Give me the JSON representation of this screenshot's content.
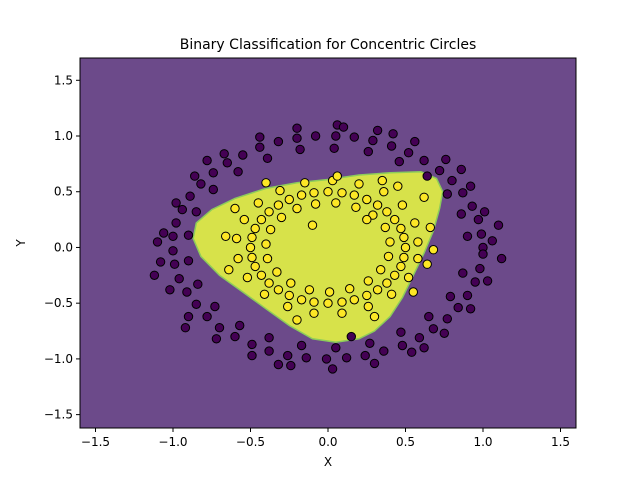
{
  "chart_data": {
    "type": "scatter",
    "title": "Binary Classification for Concentric Circles",
    "xlabel": "X",
    "ylabel": "Y",
    "xlim": [
      -1.6,
      1.6
    ],
    "ylim": [
      -1.62,
      1.7
    ],
    "x_ticks": [
      -1.5,
      -1.0,
      -0.5,
      0.0,
      0.5,
      1.0,
      1.5
    ],
    "x_tick_labels": [
      "−1.5",
      "−1.0",
      "−0.5",
      "0.0",
      "0.5",
      "1.0",
      "1.5"
    ],
    "y_ticks": [
      -1.5,
      -1.0,
      -0.5,
      0.0,
      0.5,
      1.0,
      1.5
    ],
    "y_tick_labels": [
      "−1.5",
      "−1.0",
      "−0.5",
      "0.0",
      "0.5",
      "1.0",
      "1.5"
    ],
    "grid": false,
    "legend": "none",
    "colors": {
      "background_region": "#6c4a8a",
      "decision_region": "#d7e24a",
      "decision_edge": "#8ccc5a",
      "class_0": "#440154",
      "class_1": "#fde725",
      "marker_edge": "#000000"
    },
    "decision_region": [
      [
        -0.85,
        0.22
      ],
      [
        -0.75,
        0.34
      ],
      [
        -0.6,
        0.44
      ],
      [
        -0.4,
        0.53
      ],
      [
        -0.2,
        0.58
      ],
      [
        0.0,
        0.61
      ],
      [
        0.2,
        0.65
      ],
      [
        0.4,
        0.67
      ],
      [
        0.6,
        0.68
      ],
      [
        0.7,
        0.62
      ],
      [
        0.74,
        0.5
      ],
      [
        0.72,
        0.35
      ],
      [
        0.68,
        0.15
      ],
      [
        0.62,
        -0.05
      ],
      [
        0.55,
        -0.25
      ],
      [
        0.48,
        -0.45
      ],
      [
        0.4,
        -0.62
      ],
      [
        0.3,
        -0.75
      ],
      [
        0.2,
        -0.82
      ],
      [
        0.05,
        -0.85
      ],
      [
        -0.1,
        -0.82
      ],
      [
        -0.25,
        -0.7
      ],
      [
        -0.4,
        -0.55
      ],
      [
        -0.55,
        -0.4
      ],
      [
        -0.7,
        -0.25
      ],
      [
        -0.82,
        -0.08
      ],
      [
        -0.87,
        0.08
      ]
    ],
    "series": [
      {
        "class": 0,
        "points": [
          [
            1.0,
            0.0
          ],
          [
            0.99,
            0.12
          ],
          [
            0.97,
            0.25
          ],
          [
            0.93,
            0.37
          ],
          [
            0.87,
            0.49
          ],
          [
            0.8,
            0.6
          ],
          [
            0.72,
            0.69
          ],
          [
            0.62,
            0.78
          ],
          [
            0.52,
            0.85
          ],
          [
            0.41,
            0.91
          ],
          [
            0.29,
            0.96
          ],
          [
            0.17,
            0.99
          ],
          [
            0.05,
            1.0
          ],
          [
            -0.08,
            1.0
          ],
          [
            -0.2,
            0.98
          ],
          [
            -0.32,
            0.95
          ],
          [
            -0.44,
            0.9
          ],
          [
            -0.55,
            0.83
          ],
          [
            -0.65,
            0.76
          ],
          [
            -0.74,
            0.67
          ],
          [
            -0.82,
            0.57
          ],
          [
            -0.89,
            0.46
          ],
          [
            -0.94,
            0.34
          ],
          [
            -0.98,
            0.22
          ],
          [
            -1.0,
            0.1
          ],
          [
            -1.0,
            -0.03
          ],
          [
            -0.99,
            -0.15
          ],
          [
            -0.96,
            -0.28
          ],
          [
            -0.91,
            -0.4
          ],
          [
            -0.85,
            -0.51
          ],
          [
            -0.78,
            -0.62
          ],
          [
            -0.7,
            -0.72
          ],
          [
            -0.6,
            -0.8
          ],
          [
            -0.49,
            -0.87
          ],
          [
            -0.38,
            -0.93
          ],
          [
            -0.26,
            -0.97
          ],
          [
            -0.14,
            -0.99
          ],
          [
            -0.01,
            -1.0
          ],
          [
            0.12,
            -0.99
          ],
          [
            0.24,
            -0.97
          ],
          [
            0.36,
            -0.93
          ],
          [
            0.48,
            -0.88
          ],
          [
            0.59,
            -0.81
          ],
          [
            0.68,
            -0.73
          ],
          [
            0.77,
            -0.64
          ],
          [
            0.84,
            -0.54
          ],
          [
            0.9,
            -0.43
          ],
          [
            0.95,
            -0.31
          ],
          [
            0.98,
            -0.19
          ],
          [
            1.0,
            -0.06
          ],
          [
            1.06,
            0.06
          ],
          [
            1.01,
            0.32
          ],
          [
            0.92,
            0.55
          ],
          [
            0.76,
            0.79
          ],
          [
            0.56,
            0.95
          ],
          [
            0.32,
            1.05
          ],
          [
            0.06,
            1.1
          ],
          [
            -0.2,
            1.07
          ],
          [
            -0.44,
            0.99
          ],
          [
            -0.67,
            0.84
          ],
          [
            -0.86,
            0.64
          ],
          [
            -0.98,
            0.4
          ],
          [
            -1.06,
            0.13
          ],
          [
            -1.08,
            -0.13
          ],
          [
            -1.02,
            -0.38
          ],
          [
            -0.9,
            -0.62
          ],
          [
            -0.72,
            -0.82
          ],
          [
            -0.49,
            -0.97
          ],
          [
            -0.24,
            -1.06
          ],
          [
            0.03,
            -1.09
          ],
          [
            0.3,
            -1.04
          ],
          [
            0.54,
            -0.94
          ],
          [
            0.75,
            -0.77
          ],
          [
            0.92,
            -0.55
          ],
          [
            1.03,
            -0.3
          ],
          [
            0.9,
            0.1
          ],
          [
            0.86,
            0.3
          ],
          [
            0.77,
            0.48
          ],
          [
            0.64,
            0.64
          ],
          [
            0.46,
            0.77
          ],
          [
            0.26,
            0.86
          ],
          [
            0.04,
            0.89
          ],
          [
            -0.18,
            0.88
          ],
          [
            -0.39,
            0.8
          ],
          [
            -0.58,
            0.68
          ],
          [
            -0.74,
            0.52
          ],
          [
            -0.85,
            0.32
          ],
          [
            -0.9,
            0.11
          ],
          [
            -0.9,
            -0.12
          ],
          [
            -0.84,
            -0.33
          ],
          [
            -0.73,
            -0.53
          ],
          [
            -0.57,
            -0.7
          ],
          [
            -0.38,
            -0.81
          ],
          [
            -0.17,
            -0.88
          ],
          [
            0.05,
            -0.9
          ],
          [
            0.27,
            -0.86
          ],
          [
            0.47,
            -0.76
          ],
          [
            0.65,
            -0.62
          ],
          [
            0.79,
            -0.44
          ],
          [
            0.87,
            -0.23
          ],
          [
            1.12,
            -0.1
          ],
          [
            1.1,
            0.2
          ],
          [
            -1.1,
            0.05
          ],
          [
            -1.12,
            -0.25
          ],
          [
            0.1,
            1.08
          ],
          [
            -0.32,
            -1.05
          ],
          [
            0.42,
            1.02
          ],
          [
            0.62,
            -0.9
          ],
          [
            -0.78,
            0.78
          ],
          [
            0.86,
            0.7
          ],
          [
            -0.92,
            -0.72
          ],
          [
            0.15,
            -0.8
          ]
        ]
      },
      {
        "class": 1,
        "points": [
          [
            0.5,
            0.0
          ],
          [
            0.49,
            0.09
          ],
          [
            0.47,
            0.17
          ],
          [
            0.43,
            0.25
          ],
          [
            0.38,
            0.32
          ],
          [
            0.32,
            0.38
          ],
          [
            0.25,
            0.43
          ],
          [
            0.17,
            0.47
          ],
          [
            0.09,
            0.49
          ],
          [
            0.0,
            0.5
          ],
          [
            -0.09,
            0.49
          ],
          [
            -0.17,
            0.47
          ],
          [
            -0.25,
            0.43
          ],
          [
            -0.32,
            0.38
          ],
          [
            -0.38,
            0.32
          ],
          [
            -0.43,
            0.25
          ],
          [
            -0.47,
            0.17
          ],
          [
            -0.49,
            0.09
          ],
          [
            -0.5,
            0.0
          ],
          [
            -0.49,
            -0.09
          ],
          [
            -0.47,
            -0.17
          ],
          [
            -0.43,
            -0.25
          ],
          [
            -0.38,
            -0.32
          ],
          [
            -0.32,
            -0.38
          ],
          [
            -0.25,
            -0.43
          ],
          [
            -0.17,
            -0.47
          ],
          [
            -0.09,
            -0.49
          ],
          [
            0.0,
            -0.5
          ],
          [
            0.09,
            -0.49
          ],
          [
            0.17,
            -0.47
          ],
          [
            0.25,
            -0.43
          ],
          [
            0.32,
            -0.38
          ],
          [
            0.38,
            -0.32
          ],
          [
            0.43,
            -0.25
          ],
          [
            0.47,
            -0.17
          ],
          [
            0.49,
            -0.09
          ],
          [
            0.58,
            0.05
          ],
          [
            0.56,
            0.22
          ],
          [
            0.48,
            0.38
          ],
          [
            0.36,
            0.5
          ],
          [
            0.2,
            0.57
          ],
          [
            0.03,
            0.6
          ],
          [
            -0.15,
            0.58
          ],
          [
            -0.31,
            0.51
          ],
          [
            -0.45,
            0.4
          ],
          [
            -0.54,
            0.25
          ],
          [
            -0.59,
            0.08
          ],
          [
            -0.58,
            -0.1
          ],
          [
            -0.52,
            -0.27
          ],
          [
            -0.41,
            -0.42
          ],
          [
            -0.26,
            -0.53
          ],
          [
            -0.09,
            -0.59
          ],
          [
            0.09,
            -0.59
          ],
          [
            0.26,
            -0.53
          ],
          [
            0.41,
            -0.42
          ],
          [
            0.52,
            -0.27
          ],
          [
            0.58,
            -0.1
          ],
          [
            0.4,
            0.05
          ],
          [
            0.37,
            0.18
          ],
          [
            0.29,
            0.29
          ],
          [
            0.18,
            0.36
          ],
          [
            0.05,
            0.4
          ],
          [
            -0.08,
            0.39
          ],
          [
            -0.2,
            0.35
          ],
          [
            -0.3,
            0.27
          ],
          [
            -0.37,
            0.16
          ],
          [
            -0.4,
            0.03
          ],
          [
            -0.39,
            -0.1
          ],
          [
            -0.33,
            -0.22
          ],
          [
            -0.24,
            -0.32
          ],
          [
            -0.12,
            -0.38
          ],
          [
            0.01,
            -0.4
          ],
          [
            0.14,
            -0.37
          ],
          [
            0.26,
            -0.3
          ],
          [
            0.34,
            -0.2
          ],
          [
            0.39,
            -0.08
          ],
          [
            0.66,
            0.18
          ],
          [
            0.64,
            -0.15
          ],
          [
            0.62,
            0.45
          ],
          [
            0.55,
            -0.4
          ],
          [
            -0.66,
            0.1
          ],
          [
            -0.64,
            -0.2
          ],
          [
            -0.6,
            0.35
          ],
          [
            0.06,
            0.64
          ],
          [
            0.35,
            0.6
          ],
          [
            -0.4,
            0.58
          ],
          [
            0.3,
            -0.62
          ],
          [
            -0.2,
            -0.65
          ],
          [
            0.68,
            -0.02
          ],
          [
            0.25,
            0.25
          ],
          [
            -0.1,
            0.2
          ],
          [
            0.45,
            0.55
          ]
        ]
      }
    ]
  }
}
